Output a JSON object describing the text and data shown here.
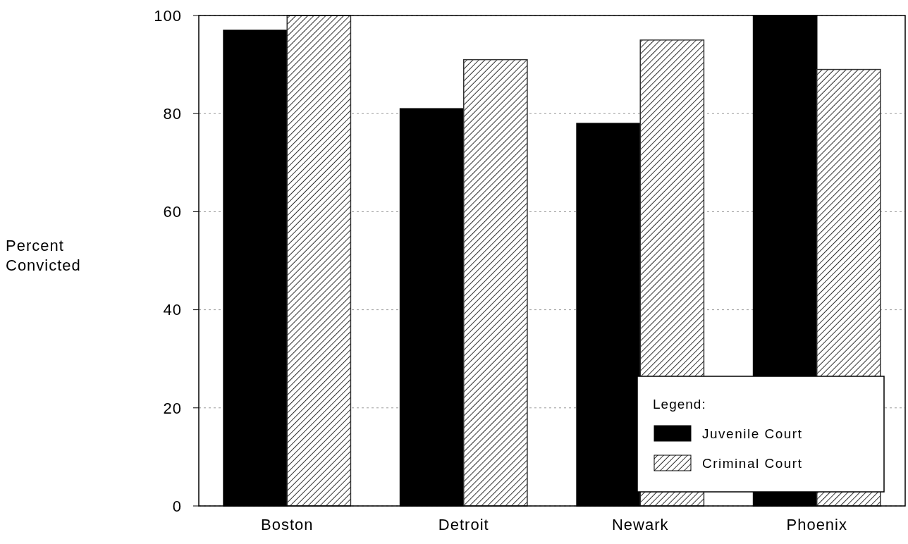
{
  "chart_data": {
    "type": "bar",
    "ylabel": "Percent Convicted",
    "categories": [
      "Boston",
      "Detroit",
      "Newark",
      "Phoenix"
    ],
    "series": [
      {
        "name": "Juvenile Court",
        "color": "#000000",
        "values": [
          97,
          81,
          78,
          100
        ]
      },
      {
        "name": "Criminal Court",
        "color": "#333333",
        "values": [
          100,
          91,
          95,
          89
        ]
      }
    ],
    "ylim": [
      0,
      100
    ],
    "yticks": [
      0,
      20,
      40,
      60,
      80,
      100
    ],
    "grid": "y",
    "legend": "bottom right",
    "legend_title": "Legend:"
  }
}
